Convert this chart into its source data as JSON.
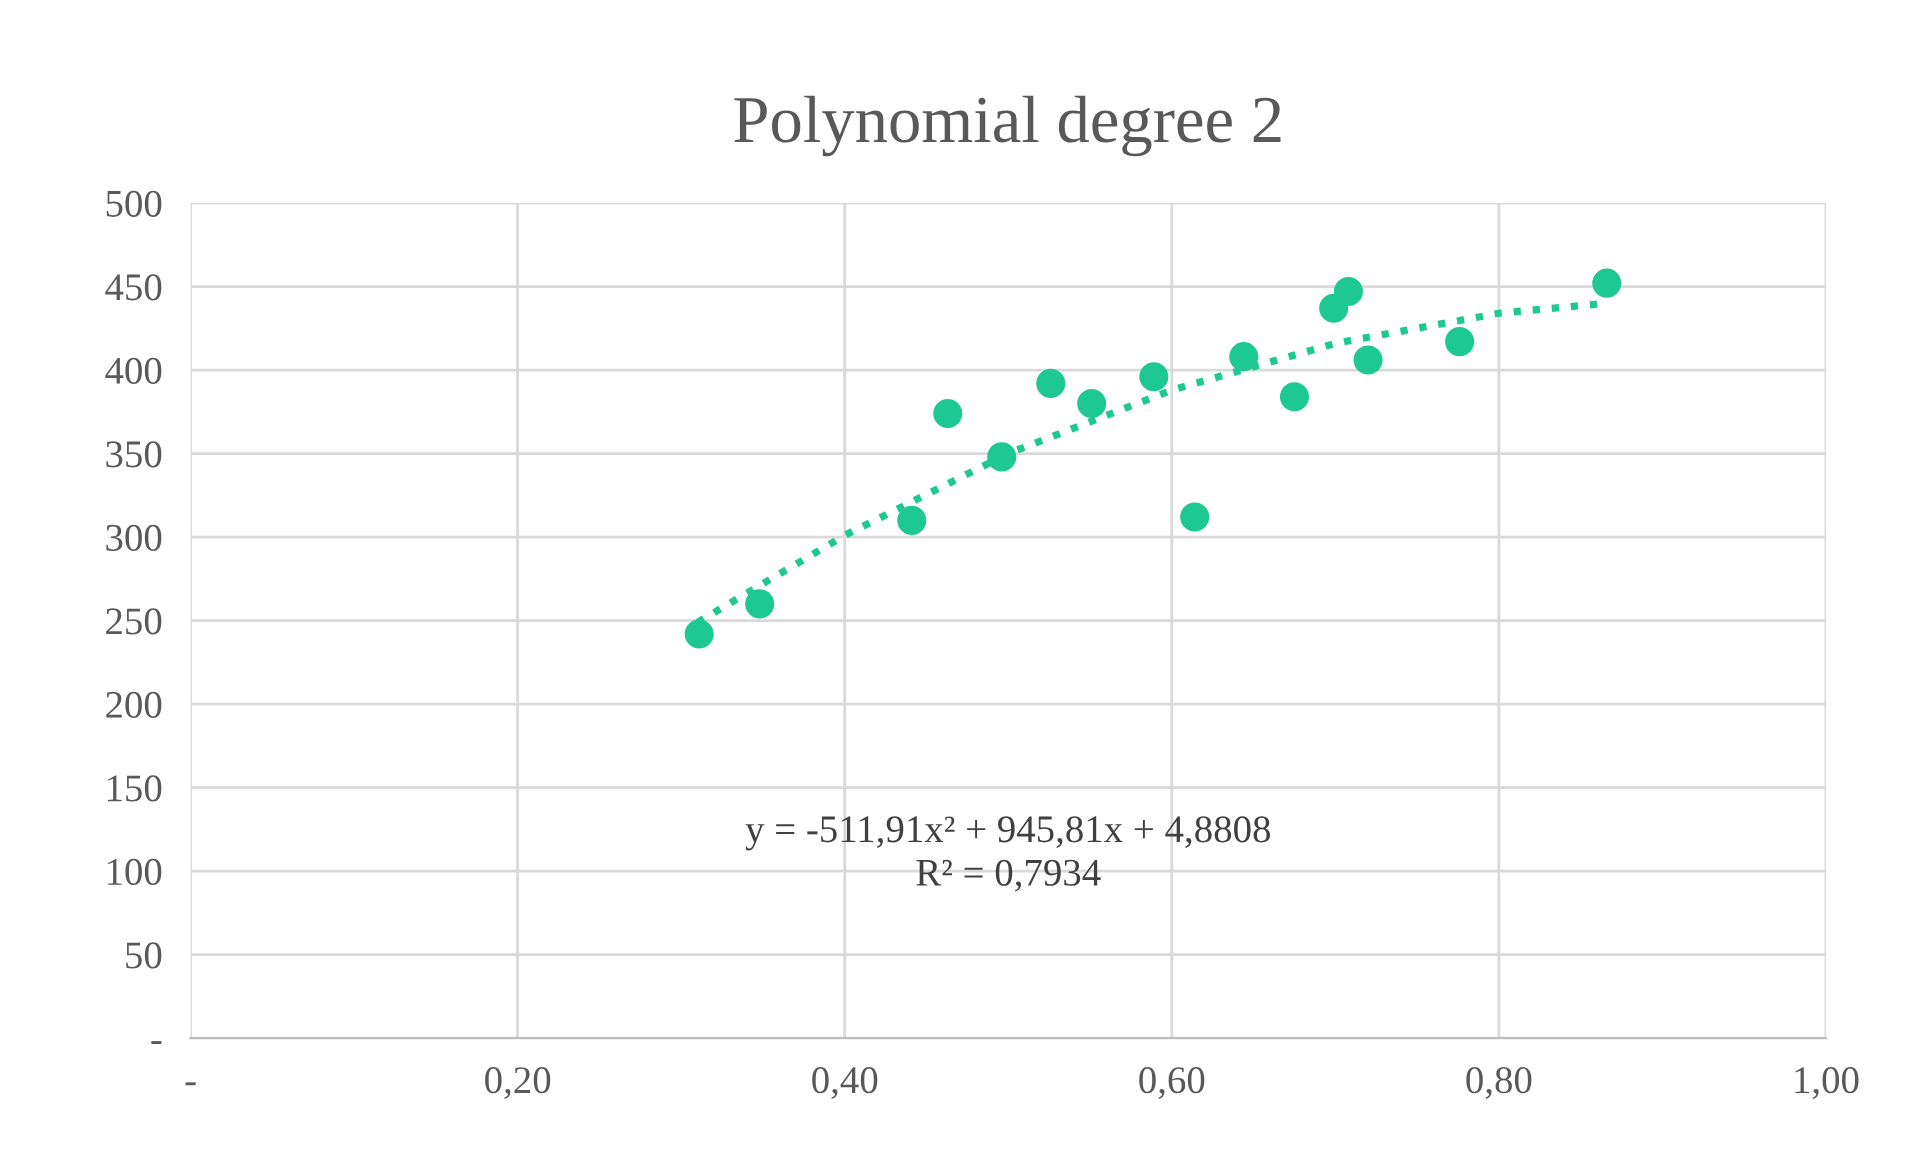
{
  "chart_data": {
    "type": "scatter",
    "title": "Polynomial degree 2",
    "xlim": [
      0,
      1
    ],
    "xticks": [
      {
        "value": 0,
        "label": "-"
      },
      {
        "value": 0.2,
        "label": "0,20"
      },
      {
        "value": 0.4,
        "label": "0,40"
      },
      {
        "value": 0.6,
        "label": "0,60"
      },
      {
        "value": 0.8,
        "label": "0,80"
      },
      {
        "value": 1,
        "label": "1,00"
      }
    ],
    "ylim": [
      0,
      500
    ],
    "yticks": [
      {
        "value": 0,
        "label": "-"
      },
      50,
      100,
      150,
      200,
      250,
      300,
      350,
      400,
      450,
      500
    ],
    "grid": true,
    "marker": "circle",
    "series": [
      {
        "color": "#1ec893",
        "x": [
          0.311,
          0.348,
          0.441,
          0.463,
          0.496,
          0.526,
          0.551,
          0.589,
          0.614,
          0.644,
          0.675,
          0.699,
          0.708,
          0.72,
          0.776,
          0.866
        ],
        "values": [
          242,
          260,
          310,
          374,
          348,
          392,
          380,
          396,
          312,
          408,
          384,
          437,
          447,
          406,
          417,
          452
        ]
      },
      {
        "type": "line",
        "line_style": "dotted",
        "marker": "none",
        "color": "#1ec893",
        "x": [
          0.31,
          0.4,
          0.5,
          0.6,
          0.7,
          0.8,
          0.866
        ],
        "values": [
          249,
          301,
          350,
          388,
          416,
          434,
          440
        ]
      }
    ],
    "annotations": [
      "y = -511,91x² + 945,81x + 4,8808\nR² = 0,7934"
    ]
  }
}
